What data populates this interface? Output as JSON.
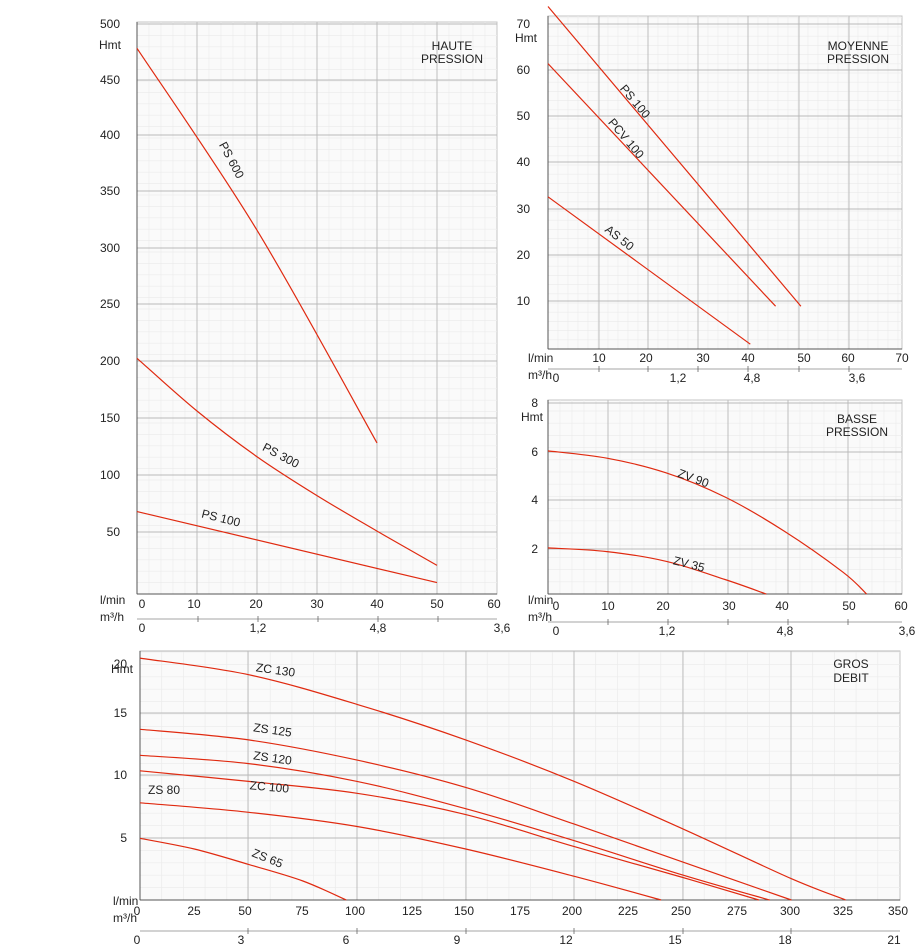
{
  "colors": {
    "curve": "#e02a10"
  },
  "chart_data": [
    {
      "type": "line",
      "title": [
        "HAUTE",
        "PRESSION"
      ],
      "ylabel": "Hmt",
      "xlabel_primary": "l/min",
      "xlabel_secondary": "m³/h",
      "xlim": [
        0,
        60
      ],
      "ylim": [
        0,
        500
      ],
      "yticks": [
        "500",
        "450",
        "400",
        "350",
        "300",
        "250",
        "200",
        "150",
        "100",
        "50"
      ],
      "xticks": [
        "0",
        "10",
        "20",
        "30",
        "40",
        "50",
        "60"
      ],
      "x2ticks": [
        "0",
        "1,2",
        "4,8",
        "3,6"
      ],
      "series": [
        {
          "name": "PS 600",
          "x": [
            0,
            20,
            40
          ],
          "y": [
            477,
            318,
            132
          ]
        },
        {
          "name": "PS 300",
          "x": [
            0,
            10,
            20,
            30,
            40,
            50
          ],
          "y": [
            206,
            160,
            120,
            86,
            55,
            25
          ]
        },
        {
          "name": "PS 100",
          "x": [
            0,
            50
          ],
          "y": [
            72,
            10
          ]
        }
      ]
    },
    {
      "type": "line",
      "title": [
        "MOYENNE",
        "PRESSION"
      ],
      "ylabel": "Hmt",
      "xlabel_primary": "l/min",
      "xlabel_secondary": "m³/h",
      "xlim": [
        0,
        70
      ],
      "ylim": [
        0,
        70
      ],
      "yticks": [
        "70",
        "60",
        "50",
        "40",
        "30",
        "20",
        "10"
      ],
      "xticks": [
        "10",
        "20",
        "30",
        "40",
        "50",
        "60",
        "70"
      ],
      "x2ticks": [
        "0",
        "1,2",
        "4,8",
        "3,6"
      ],
      "series": [
        {
          "name": "PS 100",
          "x": [
            0,
            50
          ],
          "y": [
            72,
            9
          ]
        },
        {
          "name": "PCV 100",
          "x": [
            0,
            45
          ],
          "y": [
            60,
            9
          ]
        },
        {
          "name": "AS 50",
          "x": [
            0,
            40
          ],
          "y": [
            32,
            1
          ]
        }
      ]
    },
    {
      "type": "line",
      "title": [
        "BASSE",
        "PRESSION"
      ],
      "ylabel": "Hmt",
      "xlabel_primary": "l/min",
      "xlabel_secondary": "m³/h",
      "xlim": [
        0,
        60
      ],
      "ylim": [
        0,
        8
      ],
      "yticks": [
        "8",
        "6",
        "4",
        "2"
      ],
      "xticks": [
        "0",
        "10",
        "20",
        "30",
        "40",
        "50",
        "60"
      ],
      "x2ticks": [
        "0",
        "1,2",
        "4,8",
        "3,6"
      ],
      "series": [
        {
          "name": "ZV 90",
          "x": [
            0,
            10,
            20,
            30,
            40,
            50,
            54
          ],
          "y": [
            5.9,
            5.6,
            5.0,
            4.0,
            2.6,
            0.9,
            0
          ]
        },
        {
          "name": "ZV 35",
          "x": [
            0,
            10,
            20,
            30,
            37
          ],
          "y": [
            1.9,
            1.75,
            1.35,
            0.6,
            0
          ]
        }
      ]
    },
    {
      "type": "line",
      "title": [
        "GROS",
        "DEBIT"
      ],
      "ylabel": "Hmt",
      "xlabel_primary": "l/min",
      "xlabel_secondary": "m³/h",
      "xlim": [
        0,
        350
      ],
      "ylim": [
        0,
        21
      ],
      "yticks": [
        "20",
        "15",
        "10",
        "5"
      ],
      "xticks": [
        "0",
        "25",
        "50",
        "75",
        "100",
        "125",
        "150",
        "175",
        "200",
        "225",
        "250",
        "275",
        "300",
        "325",
        "350"
      ],
      "x2ticks": [
        "0",
        "3",
        "6",
        "9",
        "12",
        "15",
        "18",
        "21"
      ],
      "series": [
        {
          "name": "ZC 130",
          "x": [
            0,
            50,
            100,
            150,
            200,
            250,
            300,
            325
          ],
          "y": [
            20.4,
            19.0,
            16.5,
            13.5,
            10.0,
            6.0,
            1.8,
            0
          ]
        },
        {
          "name": "ZS 125",
          "x": [
            0,
            50,
            100,
            150,
            200,
            250,
            300
          ],
          "y": [
            14.4,
            13.5,
            11.8,
            9.5,
            6.4,
            3.2,
            0
          ]
        },
        {
          "name": "ZS 120",
          "x": [
            0,
            50,
            100,
            150,
            200,
            250,
            290
          ],
          "y": [
            12.2,
            11.5,
            10.0,
            7.7,
            5.0,
            2.1,
            0
          ]
        },
        {
          "name": "ZC 100",
          "x": [
            0,
            50,
            100,
            150,
            200,
            250,
            285
          ],
          "y": [
            10.9,
            10.0,
            9.0,
            7.2,
            4.5,
            1.9,
            0
          ]
        },
        {
          "name": "ZS 80",
          "x": [
            0,
            50,
            100,
            150,
            200,
            240
          ],
          "y": [
            8.2,
            7.4,
            6.2,
            4.3,
            2.0,
            0
          ]
        },
        {
          "name": "ZS 65",
          "x": [
            0,
            25,
            50,
            75,
            95
          ],
          "y": [
            5.2,
            4.3,
            3.0,
            1.6,
            0
          ]
        }
      ]
    }
  ]
}
